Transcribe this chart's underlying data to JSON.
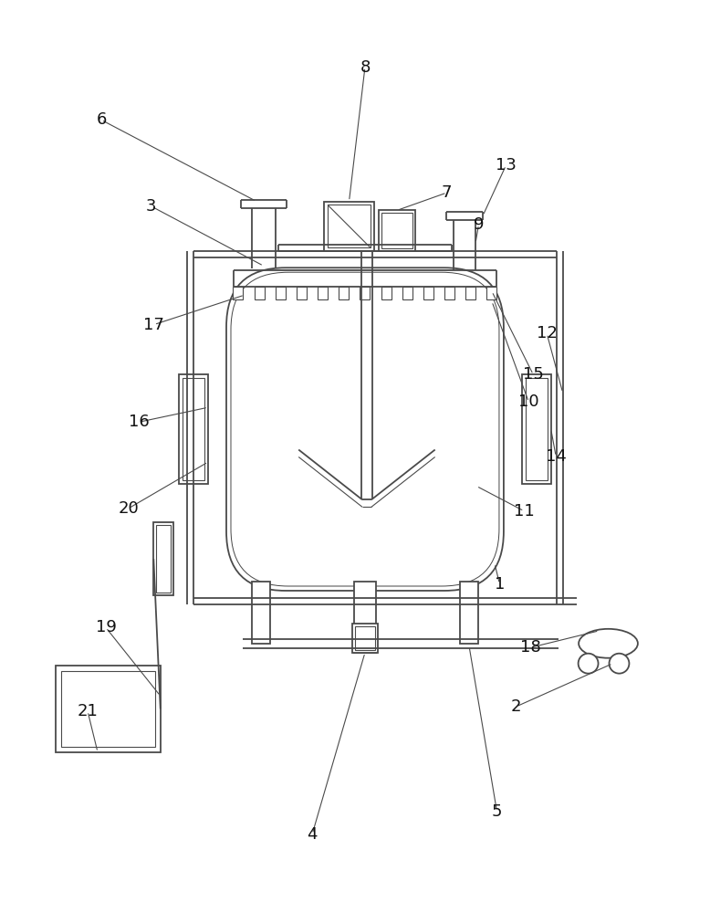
{
  "bg_color": "#ffffff",
  "line_color": "#4a4a4a",
  "lw": 1.3,
  "lw_thin": 0.8,
  "fig_width": 7.78,
  "fig_height": 10.0
}
